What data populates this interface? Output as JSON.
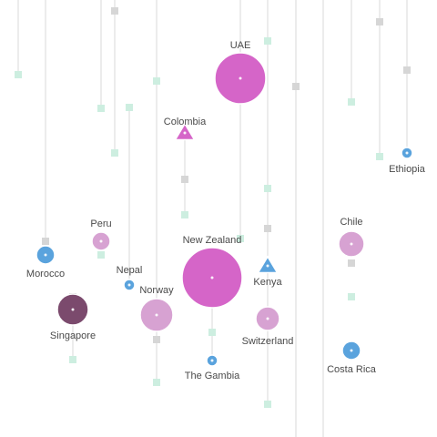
{
  "colors": {
    "line": "#d8d8d8",
    "marker_grey": "#d6d6d6",
    "marker_mint": "#cdeee0",
    "magenta": "#d565c8",
    "light_magenta": "#d7a2d2",
    "plum": "#7b4a6d",
    "blue": "#5aa3dd",
    "label": "#4a4a4a"
  },
  "labels": [
    "UAE",
    "Colombia",
    "Ethiopia",
    "Peru",
    "Morocco",
    "Nepal",
    "New Zealand",
    "Kenya",
    "Chile",
    "Norway",
    "Singapore",
    "Switzerland",
    "The Gambia",
    "Costa Rica"
  ]
}
